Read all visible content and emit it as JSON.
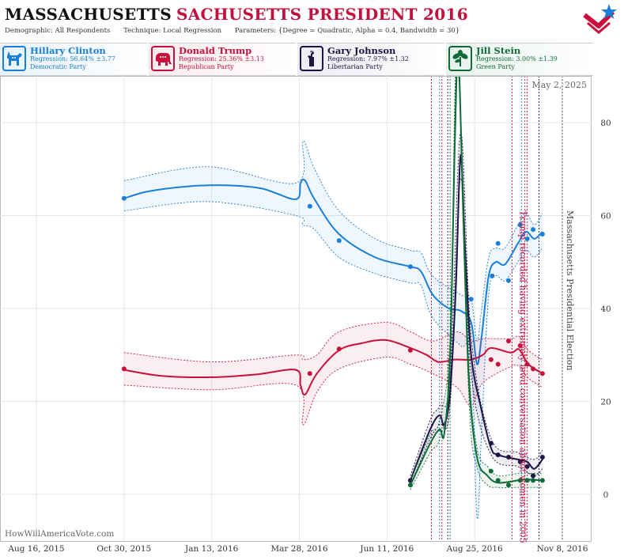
{
  "header": {
    "title_part1": "MASSACHUSETTS",
    "title_part2": "SACHUSETTS PRESIDENT 2016",
    "demographic": "Demographic: All Respondents",
    "technique": "Technique: Local Regression",
    "parameters": "Parameters: {Degree = Quadratic, Alpha = 0.4, Bandwidth = 30}"
  },
  "candidates": [
    {
      "name": "Hillary Clinton",
      "regression": "Regression: 56.64% ±3.77",
      "party": "Democratic Party",
      "color": "#1a7fd8",
      "icon": "donkey-icon"
    },
    {
      "name": "Donald Trump",
      "regression": "Regression: 25.36% ±3.13",
      "party": "Republican Party",
      "color": "#c8103d",
      "icon": "elephant-icon"
    },
    {
      "name": "Gary Johnson",
      "regression": "Regression: 7.97% ±1.32",
      "party": "Libertarian Party",
      "color": "#1c1446",
      "icon": "liberty-icon"
    },
    {
      "name": "Jill Stein",
      "regression": "Regression: 3.00% ±1.39",
      "party": "Green Party",
      "color": "#0f6b3a",
      "icon": "plant-icon"
    }
  ],
  "watermark": "HowWillAmericaVote.com",
  "date_stamp": "May 2, 2025",
  "chart_data": {
    "type": "line",
    "x_tick_labels": [
      "Aug 16, 2015",
      "Oct 30, 2015",
      "Jan 13, 2016",
      "Mar 28, 2016",
      "Jun 11, 2016",
      "Aug 25, 2016",
      "Nov 8, 2016"
    ],
    "ylim": [
      -10,
      90
    ],
    "y_ticks": [
      0,
      20,
      40,
      60,
      80
    ],
    "grid": true,
    "annotations": [
      {
        "text": "Trump recorded having extremely lewd conversation about women in 2005",
        "date": "2016-10-07",
        "color": "#c8103d"
      },
      {
        "text": "Massachusetts Presidential Election",
        "date": "2016-11-08",
        "color": "#444444"
      }
    ],
    "event_lines": [
      {
        "date": "2016-07-19",
        "color": "#c8103d"
      },
      {
        "date": "2016-07-26",
        "color": "#1a7fd8"
      },
      {
        "date": "2016-07-28",
        "color": "#c8103d"
      },
      {
        "date": "2016-08-02",
        "color": "#1c1446"
      },
      {
        "date": "2016-08-04",
        "color": "#0f6b3a"
      },
      {
        "date": "2016-09-26",
        "color": "#c8103d"
      },
      {
        "date": "2016-10-04",
        "color": "#1a7fd8"
      },
      {
        "date": "2016-10-07",
        "color": "#c8103d"
      },
      {
        "date": "2016-10-09",
        "color": "#c8103d"
      },
      {
        "date": "2016-10-19",
        "color": "#1c1446"
      },
      {
        "date": "2016-11-08",
        "color": "#444444"
      }
    ],
    "series": [
      {
        "name": "Hillary Clinton",
        "color": "#1a7fd8",
        "points": [
          [
            "2015-10-30",
            63.7
          ],
          [
            "2016-04-06",
            62
          ],
          [
            "2016-05-01",
            54.6
          ],
          [
            "2016-07-01",
            49
          ],
          [
            "2016-08-22",
            42
          ],
          [
            "2016-09-09",
            47
          ],
          [
            "2016-09-14",
            54
          ],
          [
            "2016-09-23",
            46
          ],
          [
            "2016-10-03",
            58
          ],
          [
            "2016-10-09",
            55
          ],
          [
            "2016-10-14",
            57
          ],
          [
            "2016-10-22",
            56
          ]
        ],
        "line": [
          [
            "2015-10-30",
            63.7
          ],
          [
            "2015-11-20",
            65.2
          ],
          [
            "2015-12-25",
            66.3
          ],
          [
            "2016-01-25",
            66.5
          ],
          [
            "2016-02-25",
            65.8
          ],
          [
            "2016-03-25",
            63.5
          ],
          [
            "2016-03-29",
            67
          ],
          [
            "2016-04-02",
            67.5
          ],
          [
            "2016-04-10",
            63.5
          ],
          [
            "2016-05-01",
            56
          ],
          [
            "2016-06-01",
            51
          ],
          [
            "2016-07-01",
            49
          ],
          [
            "2016-07-10",
            48
          ],
          [
            "2016-07-20",
            43
          ],
          [
            "2016-08-03",
            40
          ],
          [
            "2016-08-13",
            39.5
          ],
          [
            "2016-08-22",
            37
          ],
          [
            "2016-08-27",
            28
          ],
          [
            "2016-08-31",
            34
          ],
          [
            "2016-09-06",
            47
          ],
          [
            "2016-09-12",
            50
          ],
          [
            "2016-09-20",
            49.5
          ],
          [
            "2016-10-01",
            54
          ],
          [
            "2016-10-08",
            56.5
          ],
          [
            "2016-10-15",
            55
          ],
          [
            "2016-10-22",
            56.5
          ]
        ],
        "upper": [
          [
            "2015-10-30",
            67.5
          ],
          [
            "2016-01-10",
            70.5
          ],
          [
            "2016-03-25",
            67
          ],
          [
            "2016-03-31",
            76
          ],
          [
            "2016-04-10",
            70
          ],
          [
            "2016-05-01",
            61
          ],
          [
            "2016-06-01",
            55
          ],
          [
            "2016-07-01",
            52.5
          ],
          [
            "2016-07-10",
            52
          ],
          [
            "2016-07-20",
            47
          ],
          [
            "2016-08-13",
            43
          ],
          [
            "2016-08-22",
            42
          ],
          [
            "2016-08-27",
            33
          ],
          [
            "2016-08-31",
            40
          ],
          [
            "2016-09-06",
            51
          ],
          [
            "2016-09-12",
            53
          ],
          [
            "2016-09-20",
            53
          ],
          [
            "2016-10-01",
            58
          ],
          [
            "2016-10-08",
            60.5
          ],
          [
            "2016-10-15",
            58
          ],
          [
            "2016-10-22",
            60.5
          ]
        ],
        "lower": [
          [
            "2015-10-30",
            61
          ],
          [
            "2016-01-10",
            63
          ],
          [
            "2016-03-25",
            60
          ],
          [
            "2016-03-31",
            58
          ],
          [
            "2016-04-10",
            57
          ],
          [
            "2016-05-01",
            51
          ],
          [
            "2016-06-01",
            47.5
          ],
          [
            "2016-07-01",
            45.5
          ],
          [
            "2016-07-10",
            45
          ],
          [
            "2016-07-20",
            38
          ],
          [
            "2016-08-13",
            32
          ],
          [
            "2016-08-22",
            30
          ],
          [
            "2016-08-27",
            -5
          ],
          [
            "2016-08-31",
            14
          ],
          [
            "2016-09-06",
            43
          ],
          [
            "2016-09-12",
            47
          ],
          [
            "2016-09-20",
            46
          ],
          [
            "2016-10-01",
            50
          ],
          [
            "2016-10-08",
            52.5
          ],
          [
            "2016-10-15",
            51
          ],
          [
            "2016-10-22",
            53
          ]
        ]
      },
      {
        "name": "Donald Trump",
        "color": "#c8103d",
        "points": [
          [
            "2015-10-30",
            27
          ],
          [
            "2016-04-06",
            26
          ],
          [
            "2016-05-01",
            31.3
          ],
          [
            "2016-07-01",
            31
          ],
          [
            "2016-09-08",
            29
          ],
          [
            "2016-09-14",
            28
          ],
          [
            "2016-09-23",
            33
          ],
          [
            "2016-10-03",
            32
          ],
          [
            "2016-10-09",
            28
          ],
          [
            "2016-10-14",
            27
          ],
          [
            "2016-10-22",
            26
          ]
        ],
        "line": [
          [
            "2015-10-30",
            26.8
          ],
          [
            "2015-12-01",
            25.5
          ],
          [
            "2016-01-13",
            25.2
          ],
          [
            "2016-02-20",
            25.8
          ],
          [
            "2016-03-25",
            26.8
          ],
          [
            "2016-03-29",
            23.5
          ],
          [
            "2016-04-02",
            21.5
          ],
          [
            "2016-04-12",
            26
          ],
          [
            "2016-05-01",
            31
          ],
          [
            "2016-05-20",
            32.5
          ],
          [
            "2016-06-10",
            33.2
          ],
          [
            "2016-07-01",
            31.5
          ],
          [
            "2016-07-15",
            30
          ],
          [
            "2016-07-25",
            28.5
          ],
          [
            "2016-08-08",
            29
          ],
          [
            "2016-08-22",
            29
          ],
          [
            "2016-09-01",
            30
          ],
          [
            "2016-09-08",
            31.5
          ],
          [
            "2016-09-25",
            30.5
          ],
          [
            "2016-10-02",
            31.2
          ],
          [
            "2016-10-10",
            28
          ],
          [
            "2016-10-22",
            26
          ]
        ],
        "upper": [
          [
            "2015-10-30",
            30.5
          ],
          [
            "2016-01-13",
            28.5
          ],
          [
            "2016-03-25",
            30
          ],
          [
            "2016-03-31",
            29
          ],
          [
            "2016-04-12",
            30
          ],
          [
            "2016-05-01",
            35
          ],
          [
            "2016-06-10",
            37
          ],
          [
            "2016-07-01",
            35
          ],
          [
            "2016-07-20",
            33
          ],
          [
            "2016-08-10",
            35
          ],
          [
            "2016-08-22",
            33
          ],
          [
            "2016-09-01",
            33.5
          ],
          [
            "2016-09-25",
            33.5
          ],
          [
            "2016-10-02",
            34
          ],
          [
            "2016-10-10",
            31
          ],
          [
            "2016-10-22",
            29
          ]
        ],
        "lower": [
          [
            "2015-10-30",
            23.5
          ],
          [
            "2016-01-13",
            22.5
          ],
          [
            "2016-03-25",
            23.5
          ],
          [
            "2016-03-31",
            15
          ],
          [
            "2016-04-12",
            22
          ],
          [
            "2016-05-01",
            27
          ],
          [
            "2016-06-10",
            29.5
          ],
          [
            "2016-07-01",
            28
          ],
          [
            "2016-07-20",
            26
          ],
          [
            "2016-08-10",
            23
          ],
          [
            "2016-08-22",
            19
          ],
          [
            "2016-09-01",
            24
          ],
          [
            "2016-09-25",
            27.5
          ],
          [
            "2016-10-02",
            27.5
          ],
          [
            "2016-10-10",
            25
          ],
          [
            "2016-10-22",
            23
          ]
        ]
      },
      {
        "name": "Gary Johnson",
        "color": "#1c1446",
        "points": [
          [
            "2016-07-01",
            3
          ],
          [
            "2016-09-08",
            11
          ],
          [
            "2016-09-14",
            8.5
          ],
          [
            "2016-09-23",
            8
          ],
          [
            "2016-10-03",
            7
          ],
          [
            "2016-10-09",
            6
          ],
          [
            "2016-10-14",
            4
          ],
          [
            "2016-10-22",
            8
          ]
        ],
        "line": [
          [
            "2016-07-01",
            3
          ],
          [
            "2016-07-18",
            14
          ],
          [
            "2016-07-26",
            17
          ],
          [
            "2016-07-30",
            15
          ],
          [
            "2016-08-04",
            22
          ],
          [
            "2016-08-09",
            45
          ],
          [
            "2016-08-13",
            73
          ],
          [
            "2016-08-17",
            52
          ],
          [
            "2016-08-22",
            30
          ],
          [
            "2016-08-31",
            18
          ],
          [
            "2016-09-08",
            10
          ],
          [
            "2016-09-14",
            8.5
          ],
          [
            "2016-10-01",
            7.5
          ],
          [
            "2016-10-09",
            7
          ],
          [
            "2016-10-15",
            5.5
          ],
          [
            "2016-10-22",
            7.5
          ]
        ],
        "upper": [
          [
            "2016-07-01",
            4
          ],
          [
            "2016-07-18",
            16
          ],
          [
            "2016-07-26",
            19
          ],
          [
            "2016-08-04",
            25
          ],
          [
            "2016-08-13",
            78
          ],
          [
            "2016-08-22",
            34
          ],
          [
            "2016-09-08",
            12
          ],
          [
            "2016-10-01",
            9
          ],
          [
            "2016-10-15",
            7.5
          ],
          [
            "2016-10-22",
            9.5
          ]
        ],
        "lower": [
          [
            "2016-07-01",
            2
          ],
          [
            "2016-07-18",
            12
          ],
          [
            "2016-07-26",
            15
          ],
          [
            "2016-08-04",
            19
          ],
          [
            "2016-08-13",
            68
          ],
          [
            "2016-08-22",
            26
          ],
          [
            "2016-09-08",
            8.5
          ],
          [
            "2016-10-01",
            6
          ],
          [
            "2016-10-15",
            4
          ],
          [
            "2016-10-22",
            5.5
          ]
        ]
      },
      {
        "name": "Jill Stein",
        "color": "#0f6b3a",
        "points": [
          [
            "2016-07-01",
            2
          ],
          [
            "2016-09-08",
            5
          ],
          [
            "2016-09-14",
            3
          ],
          [
            "2016-09-23",
            2
          ],
          [
            "2016-10-03",
            3
          ],
          [
            "2016-10-09",
            3
          ],
          [
            "2016-10-14",
            3
          ],
          [
            "2016-10-22",
            3
          ]
        ],
        "line": [
          [
            "2016-07-01",
            2
          ],
          [
            "2016-07-18",
            11
          ],
          [
            "2016-07-26",
            14
          ],
          [
            "2016-07-30",
            13
          ],
          [
            "2016-08-04",
            30
          ],
          [
            "2016-08-08",
            75
          ],
          [
            "2016-08-11",
            95
          ],
          [
            "2016-08-15",
            62
          ],
          [
            "2016-08-20",
            25
          ],
          [
            "2016-08-27",
            8
          ],
          [
            "2016-09-05",
            4
          ],
          [
            "2016-09-14",
            2.5
          ],
          [
            "2016-10-01",
            3
          ],
          [
            "2016-10-09",
            3.2
          ],
          [
            "2016-10-22",
            3
          ]
        ],
        "upper": [
          [
            "2016-07-01",
            3
          ],
          [
            "2016-07-18",
            13
          ],
          [
            "2016-07-26",
            16
          ],
          [
            "2016-08-04",
            34
          ],
          [
            "2016-08-10",
            96
          ],
          [
            "2016-08-20",
            29
          ],
          [
            "2016-08-27",
            10
          ],
          [
            "2016-09-05",
            6
          ],
          [
            "2016-09-14",
            4
          ],
          [
            "2016-10-01",
            4.5
          ],
          [
            "2016-10-22",
            4.5
          ]
        ],
        "lower": [
          [
            "2016-07-01",
            1
          ],
          [
            "2016-07-18",
            9
          ],
          [
            "2016-07-26",
            12
          ],
          [
            "2016-08-04",
            26
          ],
          [
            "2016-08-10",
            94
          ],
          [
            "2016-08-20",
            21
          ],
          [
            "2016-08-27",
            6
          ],
          [
            "2016-09-05",
            2
          ],
          [
            "2016-09-14",
            1.5
          ],
          [
            "2016-10-01",
            1.5
          ],
          [
            "2016-10-22",
            1.5
          ]
        ]
      }
    ]
  }
}
